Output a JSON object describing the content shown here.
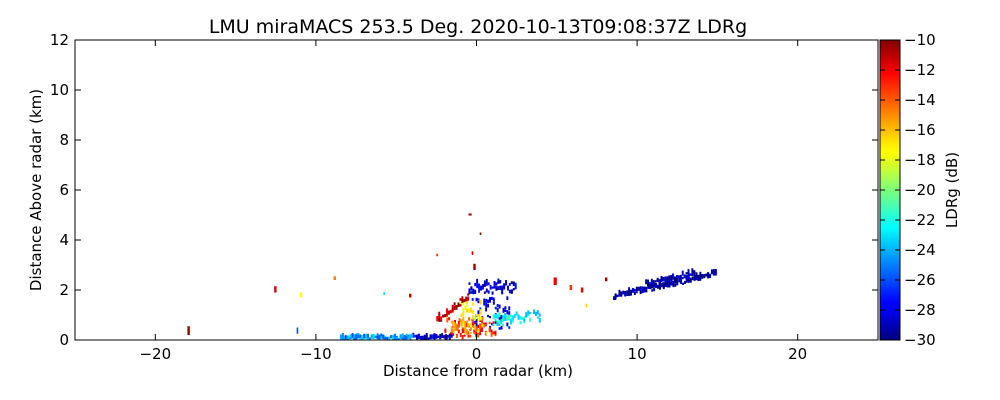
{
  "chart_data": {
    "type": "heatmap",
    "title": "LMU miraMACS 253.5 Deg. 2020-10-13T09:08:37Z  LDRg",
    "xlabel": "Distance from radar (km)",
    "ylabel": "Distance Above radar  (km)",
    "xlim": [
      -25,
      25
    ],
    "ylim": [
      0,
      12
    ],
    "x_ticks": [
      -20,
      -10,
      0,
      10,
      20
    ],
    "x_tick_labels": [
      "−20",
      "−10",
      "0",
      "10",
      "20"
    ],
    "y_ticks": [
      0,
      2,
      4,
      6,
      8,
      10,
      12
    ],
    "y_tick_labels": [
      "0",
      "2",
      "4",
      "6",
      "8",
      "10",
      "12"
    ],
    "colorbar": {
      "label": "LDRg (dB)",
      "range": [
        -30,
        -10
      ],
      "colormap": "jet",
      "ticks": [
        -10,
        -12,
        -14,
        -16,
        -18,
        -20,
        -22,
        -24,
        -26,
        -28,
        -30
      ],
      "tick_labels": [
        "−10",
        "−12",
        "−14",
        "−16",
        "−18",
        "−20",
        "−22",
        "−24",
        "−26",
        "−28",
        "−30"
      ]
    },
    "regions": [
      {
        "x0": 8.6,
        "x1": 14.9,
        "y_bottom0": 1.6,
        "y_bottom1": 2.5,
        "thickness": 0.2,
        "value": -29.5
      },
      {
        "x0": 10.5,
        "x1": 13.5,
        "y_bottom0": 2.0,
        "y_bottom1": 2.45,
        "thickness": 0.25,
        "value": -29.0
      },
      {
        "x0": -0.5,
        "x1": 2.5,
        "y_bottom0": 1.8,
        "y_bottom1": 1.8,
        "thickness": 0.5,
        "value": -28.5
      },
      {
        "x0": -0.3,
        "x1": 2.0,
        "y_bottom0": 0.4,
        "y_bottom1": 0.4,
        "thickness": 1.2,
        "value": -28.0
      },
      {
        "x0": -2.0,
        "x1": 1.2,
        "y_bottom0": 0.0,
        "y_bottom1": 0.0,
        "thickness": 0.8,
        "value": -13.0
      },
      {
        "x0": -1.6,
        "x1": 0.6,
        "y_bottom0": 0.2,
        "y_bottom1": 0.2,
        "thickness": 0.6,
        "value": -15.5
      },
      {
        "x0": -1.0,
        "x1": 0.2,
        "y_bottom0": 0.5,
        "y_bottom1": 0.5,
        "thickness": 1.0,
        "value": -17.0
      },
      {
        "x0": 1.0,
        "x1": 4.0,
        "y_bottom0": 0.5,
        "y_bottom1": 0.7,
        "thickness": 0.4,
        "value": -22.5
      },
      {
        "x0": -4.0,
        "x1": -1.5,
        "y_bottom0": 0.0,
        "y_bottom1": 0.0,
        "thickness": 0.1,
        "value": -28.5
      },
      {
        "x0": -8.5,
        "x1": -4.0,
        "y_bottom0": 0.0,
        "y_bottom1": 0.0,
        "thickness": 0.1,
        "value": -24.5
      },
      {
        "x0": -2.5,
        "x1": -0.5,
        "y_bottom0": 0.6,
        "y_bottom1": 1.6,
        "thickness": 0.3,
        "value": -11.0
      }
    ],
    "isolated_echoes": [
      {
        "x": -18.0,
        "y": 0.2,
        "dx": 0.15,
        "dy": 0.35,
        "value": -10.5
      },
      {
        "x": -12.6,
        "y": 1.9,
        "dx": 0.15,
        "dy": 0.25,
        "value": -11.5
      },
      {
        "x": -11.2,
        "y": 0.25,
        "dx": 0.1,
        "dy": 0.25,
        "value": -26.0
      },
      {
        "x": -11.0,
        "y": 1.7,
        "dx": 0.15,
        "dy": 0.2,
        "value": -17.5
      },
      {
        "x": -8.9,
        "y": 2.4,
        "dx": 0.15,
        "dy": 0.15,
        "value": -15.0
      },
      {
        "x": -8.2,
        "y": 0.05,
        "dx": 0.1,
        "dy": 0.15,
        "value": -26.5
      },
      {
        "x": -5.8,
        "y": 1.8,
        "dx": 0.1,
        "dy": 0.12,
        "value": -23.0
      },
      {
        "x": -4.2,
        "y": 1.7,
        "dx": 0.15,
        "dy": 0.15,
        "value": -11.0
      },
      {
        "x": -2.5,
        "y": 3.35,
        "dx": 0.1,
        "dy": 0.1,
        "value": -13.0
      },
      {
        "x": -0.5,
        "y": 4.98,
        "dx": 0.2,
        "dy": 0.08,
        "value": -10.5
      },
      {
        "x": 0.2,
        "y": 4.2,
        "dx": 0.1,
        "dy": 0.1,
        "value": -10.5
      },
      {
        "x": -0.3,
        "y": 3.4,
        "dx": 0.1,
        "dy": 0.15,
        "value": -11.5
      },
      {
        "x": -0.2,
        "y": 2.8,
        "dx": 0.15,
        "dy": 0.25,
        "value": -10.5
      },
      {
        "x": 4.8,
        "y": 2.2,
        "dx": 0.2,
        "dy": 0.3,
        "value": -12.0
      },
      {
        "x": 5.8,
        "y": 2.0,
        "dx": 0.15,
        "dy": 0.2,
        "value": -13.5
      },
      {
        "x": 6.5,
        "y": 1.9,
        "dx": 0.15,
        "dy": 0.2,
        "value": -12.0
      },
      {
        "x": 8.0,
        "y": 2.35,
        "dx": 0.15,
        "dy": 0.15,
        "value": -10.5
      },
      {
        "x": 6.8,
        "y": 1.3,
        "dx": 0.1,
        "dy": 0.15,
        "value": -16.5
      },
      {
        "x": 8.5,
        "y": 1.6,
        "dx": 0.2,
        "dy": 0.15,
        "value": -29.5
      }
    ]
  }
}
